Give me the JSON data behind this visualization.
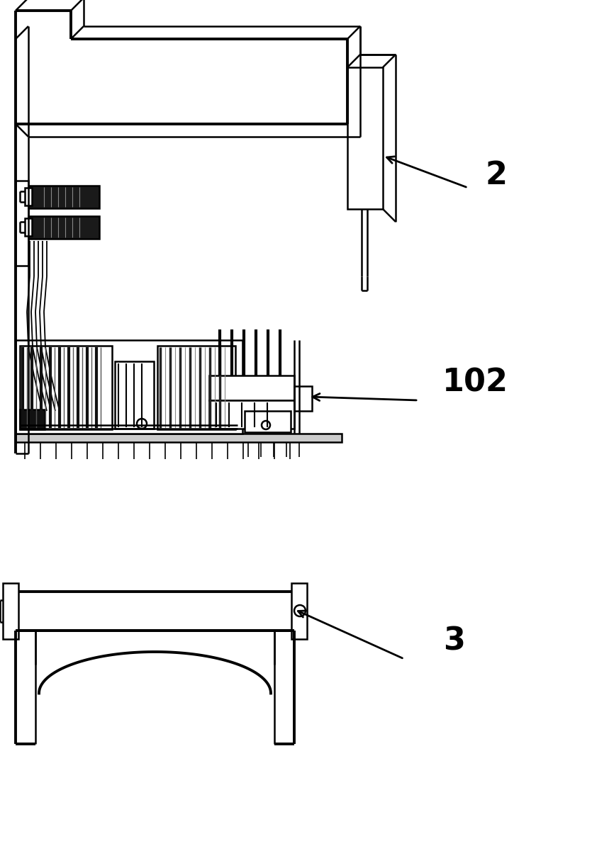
{
  "bg_color": "#ffffff",
  "line_color": "#000000",
  "lw": 1.8,
  "hlw": 2.8,
  "label_2": "2",
  "label_102": "102",
  "label_3": "3",
  "figsize": [
    8.35,
    12.11
  ],
  "dpi": 100
}
